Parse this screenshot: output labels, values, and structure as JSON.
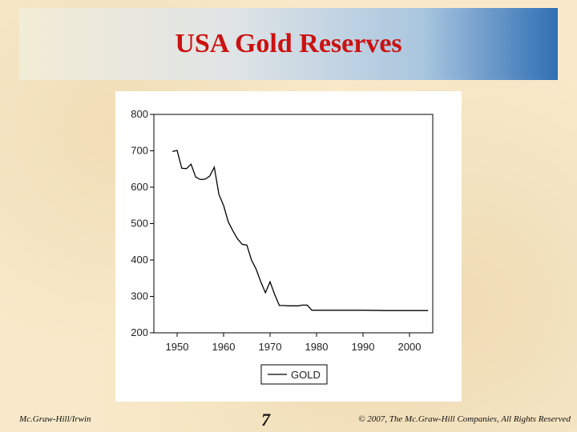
{
  "slide": {
    "title": "USA Gold Reserves",
    "footer_left": "Mc.Graw-Hill/Irwin",
    "page_number": "7",
    "footer_right": "© 2007, The Mc.Graw-Hill Companies, All Rights Reserved"
  },
  "chart_data": {
    "type": "line",
    "title": "",
    "xlabel": "",
    "ylabel": "",
    "xlim": [
      1945,
      2005
    ],
    "ylim": [
      200,
      800
    ],
    "x_ticks": [
      1950,
      1960,
      1970,
      1980,
      1990,
      2000
    ],
    "x_tick_labels": [
      "1950",
      "1960",
      "1970",
      "1980",
      "1990",
      "2000"
    ],
    "y_ticks": [
      200,
      300,
      400,
      500,
      600,
      700,
      800
    ],
    "y_tick_labels": [
      "200",
      "300",
      "400",
      "500",
      "600",
      "700",
      "800"
    ],
    "grid": false,
    "legend": "bottom-center",
    "series": [
      {
        "name": "GOLD",
        "color": "#000000",
        "x": [
          1949,
          1950,
          1951,
          1952,
          1953,
          1954,
          1955,
          1956,
          1957,
          1958,
          1959,
          1960,
          1961,
          1962,
          1963,
          1964,
          1965,
          1966,
          1967,
          1968,
          1969,
          1970,
          1971,
          1972,
          1973,
          1974,
          1975,
          1976,
          1977,
          1978,
          1979,
          1980,
          1985,
          1990,
          1995,
          2000,
          2004
        ],
        "values": [
          698,
          701,
          652,
          651,
          663,
          628,
          621,
          622,
          630,
          655,
          580,
          550,
          505,
          480,
          458,
          443,
          441,
          400,
          375,
          340,
          310,
          340,
          305,
          275,
          275,
          274,
          274,
          274,
          276,
          276,
          262,
          262,
          262,
          262,
          261,
          261,
          261
        ]
      }
    ]
  }
}
